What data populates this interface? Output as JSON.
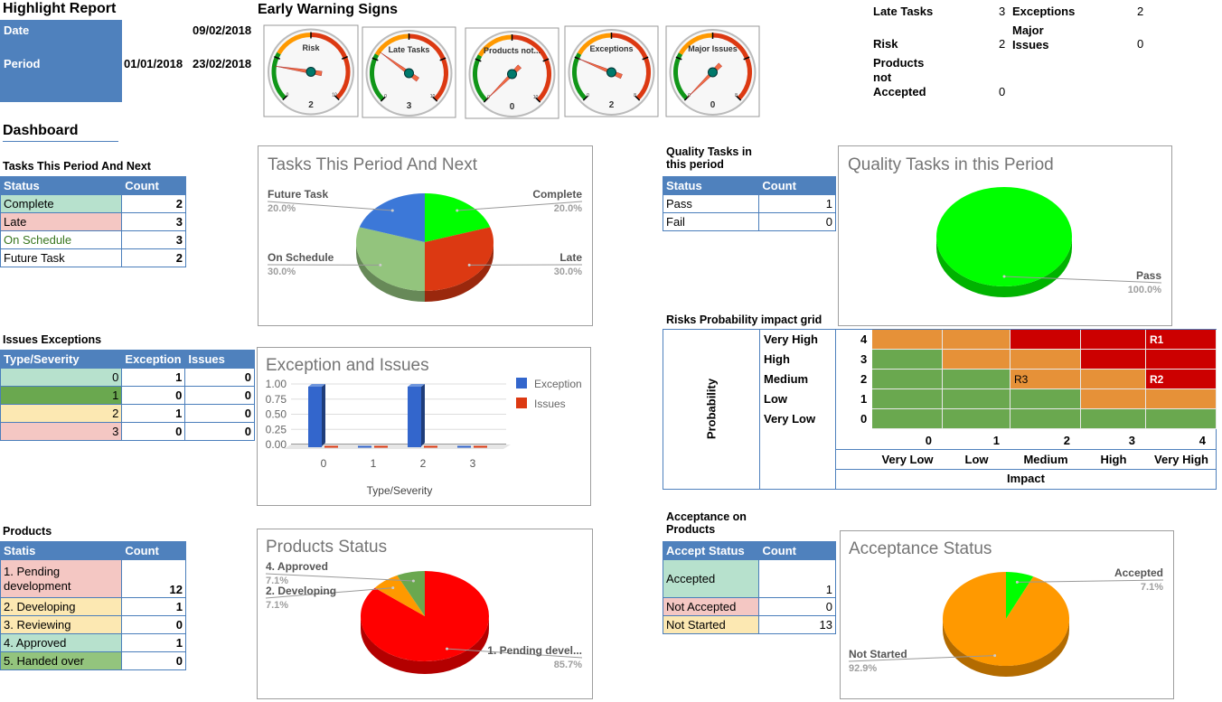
{
  "header": {
    "title": "Highlight Report",
    "date_label": "Date",
    "date_value": "09/02/2018",
    "period_label": "Period",
    "period_start": "01/01/2018",
    "period_end": "23/02/2018"
  },
  "warning": {
    "title": "Early Warning Signs",
    "gauges": [
      {
        "label": "Risk",
        "value": 2,
        "min": "0",
        "max": "10",
        "max_value": 10
      },
      {
        "label": "Late Tasks",
        "value": 3,
        "min": "0",
        "max": "10",
        "max_value": 10
      },
      {
        "label": "Products not...",
        "value": 0,
        "min": "0",
        "max": "10",
        "max_value": 10
      },
      {
        "label": "Exceptions",
        "value": 2,
        "min": "0",
        "max": "8",
        "max_value": 8
      },
      {
        "label": "Major Issues",
        "value": 0,
        "min": "0",
        "max": "8",
        "max_value": 8
      }
    ]
  },
  "summary": {
    "late_tasks_label": "Late Tasks",
    "late_tasks": "3",
    "exceptions_label": "Exceptions",
    "exceptions": "2",
    "risk_label": "Risk",
    "risk": "2",
    "major_issues_label": "Major Issues",
    "major_issues": "0",
    "products_label": "Products not Accepted",
    "products": "0"
  },
  "dashboard_title": "Dashboard",
  "tables": {
    "tasks": {
      "title": "Tasks This Period And Next",
      "headers": [
        "Status",
        "Count"
      ],
      "rows": [
        {
          "cells": [
            "Complete",
            "2"
          ],
          "bg": "#b7e1cd"
        },
        {
          "cells": [
            "Late",
            "3"
          ],
          "bg": "#f4c7c3"
        },
        {
          "cells": [
            "On Schedule",
            "3"
          ],
          "bg": "#ffffff",
          "color": "#38761d"
        },
        {
          "cells": [
            "Future Task",
            "2"
          ],
          "bg": "#ffffff"
        }
      ]
    },
    "issues": {
      "title": "Issues Exceptions",
      "headers": [
        "Type/Severity",
        "Exception",
        "Issues"
      ],
      "rows": [
        {
          "cells": [
            "0",
            "1",
            "0"
          ],
          "bg": "#b7e1cd"
        },
        {
          "cells": [
            "1",
            "0",
            "0"
          ],
          "bg": "#6aa84f"
        },
        {
          "cells": [
            "2",
            "1",
            "0"
          ],
          "bg": "#fce8b2"
        },
        {
          "cells": [
            "3",
            "0",
            "0"
          ],
          "bg": "#f4c7c3"
        }
      ]
    },
    "products": {
      "title": "Products",
      "headers": [
        "Statis",
        "Count"
      ],
      "rows": [
        {
          "cells": [
            "1. Pending development",
            "12"
          ],
          "bg": "#f4c7c3",
          "tall": true
        },
        {
          "cells": [
            "2. Developing",
            "1"
          ],
          "bg": "#fce8b2"
        },
        {
          "cells": [
            "3. Reviewing",
            "0"
          ],
          "bg": "#fce8b2"
        },
        {
          "cells": [
            "4. Approved",
            "1"
          ],
          "bg": "#b7e1cd"
        },
        {
          "cells": [
            "5. Handed over",
            "0"
          ],
          "bg": "#93c47d"
        }
      ]
    },
    "quality": {
      "title": "Quality Tasks in this period",
      "headers": [
        "Status",
        "Count"
      ],
      "rows": [
        {
          "cells": [
            "Pass",
            "1"
          ],
          "bg": "#ffffff"
        },
        {
          "cells": [
            "Fail",
            "0"
          ],
          "bg": "#ffffff"
        }
      ]
    },
    "acceptance": {
      "title": "Acceptance on Products",
      "headers": [
        "Accept Status",
        "Count"
      ],
      "rows": [
        {
          "cells": [
            "Accepted",
            "1"
          ],
          "bg": "#b7e1cd",
          "tall": true
        },
        {
          "cells": [
            "Not Accepted",
            "0"
          ],
          "bg": "#f4c7c3"
        },
        {
          "cells": [
            "Not Started",
            "13"
          ],
          "bg": "#fce8b2"
        }
      ]
    }
  },
  "risk_grid": {
    "title": "Risks Probability impact grid",
    "prob_axis": "Probability",
    "impact_axis": "Impact",
    "prob_levels": [
      "Very High",
      "High",
      "Medium",
      "Low",
      "Very Low"
    ],
    "prob_values": [
      "4",
      "3",
      "2",
      "1",
      "0"
    ],
    "impact_levels": [
      "Very Low",
      "Low",
      "Medium",
      "High",
      "Very High"
    ],
    "impact_values": [
      "0",
      "1",
      "2",
      "3",
      "4"
    ],
    "cells": [
      [
        "O",
        "O",
        "R",
        "R",
        "R"
      ],
      [
        "G",
        "O",
        "O",
        "R",
        "R"
      ],
      [
        "G",
        "G",
        "O",
        "O",
        "R"
      ],
      [
        "G",
        "G",
        "G",
        "O",
        "O"
      ],
      [
        "G",
        "G",
        "G",
        "G",
        "G"
      ]
    ],
    "risks": [
      {
        "id": "R1",
        "row": 0,
        "col": 4
      },
      {
        "id": "R3",
        "row": 2,
        "col": 2
      },
      {
        "id": "R2",
        "row": 2,
        "col": 4
      }
    ],
    "colors": {
      "G": "#6aa84f",
      "O": "#e69138",
      "R": "#cc0000"
    }
  },
  "chart_data": [
    {
      "id": "tasks",
      "type": "pie",
      "title": "Tasks This Period And Next",
      "slices": [
        {
          "label": "Complete",
          "value": 20.0,
          "pct": "20.0%",
          "color": "#00ff00"
        },
        {
          "label": "Late",
          "value": 30.0,
          "pct": "30.0%",
          "color": "#dc3912"
        },
        {
          "label": "On Schedule",
          "value": 30.0,
          "pct": "30.0%",
          "color": "#93c47d"
        },
        {
          "label": "Future Task",
          "value": 20.0,
          "pct": "20.0%",
          "color": "#3c78d8"
        }
      ]
    },
    {
      "id": "quality",
      "type": "pie",
      "title": "Quality Tasks in this Period",
      "slices": [
        {
          "label": "Pass",
          "value": 100.0,
          "pct": "100.0%",
          "color": "#00ff00"
        }
      ]
    },
    {
      "id": "issues",
      "type": "bar",
      "title": "Exception and Issues",
      "categories": [
        "0",
        "1",
        "2",
        "3"
      ],
      "series": [
        {
          "name": "Exception",
          "values": [
            1,
            0,
            1,
            0
          ],
          "color": "#3366cc"
        },
        {
          "name": "Issues",
          "values": [
            0,
            0,
            0,
            0
          ],
          "color": "#dc3912"
        }
      ],
      "xlabel": "Type/Severity",
      "ylabel": "",
      "ylim": [
        0,
        1
      ],
      "yticks": [
        "0.00",
        "0.25",
        "0.50",
        "0.75",
        "1.00"
      ],
      "legend": "right"
    },
    {
      "id": "products",
      "type": "pie",
      "title": "Products Status",
      "slices": [
        {
          "label": "1. Pending devel...",
          "value": 85.7,
          "pct": "85.7%",
          "color": "#ff0000"
        },
        {
          "label": "2. Developing",
          "value": 7.1,
          "pct": "7.1%",
          "color": "#ff9900"
        },
        {
          "label": "4. Approved",
          "value": 7.1,
          "pct": "7.1%",
          "color": "#6aa84f"
        }
      ]
    },
    {
      "id": "acceptance",
      "type": "pie",
      "title": "Acceptance Status",
      "slices": [
        {
          "label": "Accepted",
          "value": 7.1,
          "pct": "7.1%",
          "color": "#00ff00"
        },
        {
          "label": "Not Started",
          "value": 92.9,
          "pct": "92.9%",
          "color": "#ff9900"
        }
      ]
    }
  ]
}
